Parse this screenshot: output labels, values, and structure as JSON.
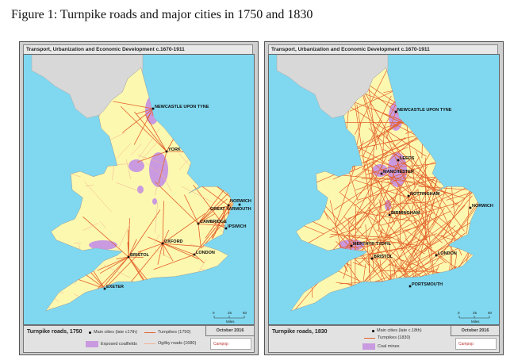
{
  "caption": "Figure 1: Turnpike roads and major cities in 1750 and 1830",
  "colors": {
    "sea": "#7fd8f0",
    "land": "#fdf8b0",
    "scotland": "#d8d8d8",
    "turnpike": "#e2602a",
    "ogilby": "#f0b090",
    "coal": "#c99ae0"
  },
  "maps": [
    {
      "header": "Transport, Urbanization and Economic Development c.1670-1911",
      "legend_title": "Turnpike roads, 1750",
      "date": "October 2016",
      "logo": "Campop",
      "legend": {
        "cities": "Main cities (late c17th)",
        "turnpikes": "Turnpikes (1750)",
        "coal": "Exposed coalfields",
        "ogilby": "Ogilby roads (1680)"
      },
      "scale": {
        "ticks": [
          "0",
          "25",
          "50"
        ],
        "unit": "Miles"
      },
      "cities": [
        "NEWCASTLE UPON TYNE",
        "YORK",
        "NORWICH",
        "GREAT YARMOUTH",
        "CAMBRIDGE",
        "IPSWICH",
        "OXFORD",
        "LONDON",
        "BRISTOL",
        "EXETER"
      ]
    },
    {
      "header": "Transport, Urbanization and Economic Development c.1670-1911",
      "legend_title": "Turnpike roads, 1830",
      "date": "October 2016",
      "logo": "Campop",
      "legend": {
        "cities": "Main cities (late c.18th)",
        "turnpikes": "Turnpikes (1830)",
        "coal": "Coal mines"
      },
      "scale": {
        "ticks": [
          "0",
          "25",
          "50"
        ],
        "unit": "Miles"
      },
      "cities": [
        "NEWCASTLE UPON TYNE",
        "LEEDS",
        "MANCHESTER",
        "NOTTINGHAM",
        "BIRMINGHAM",
        "NORWICH",
        "MERTHYR TYDFIL",
        "BRISTOL",
        "LONDON",
        "PORTSMOUTH"
      ]
    }
  ]
}
